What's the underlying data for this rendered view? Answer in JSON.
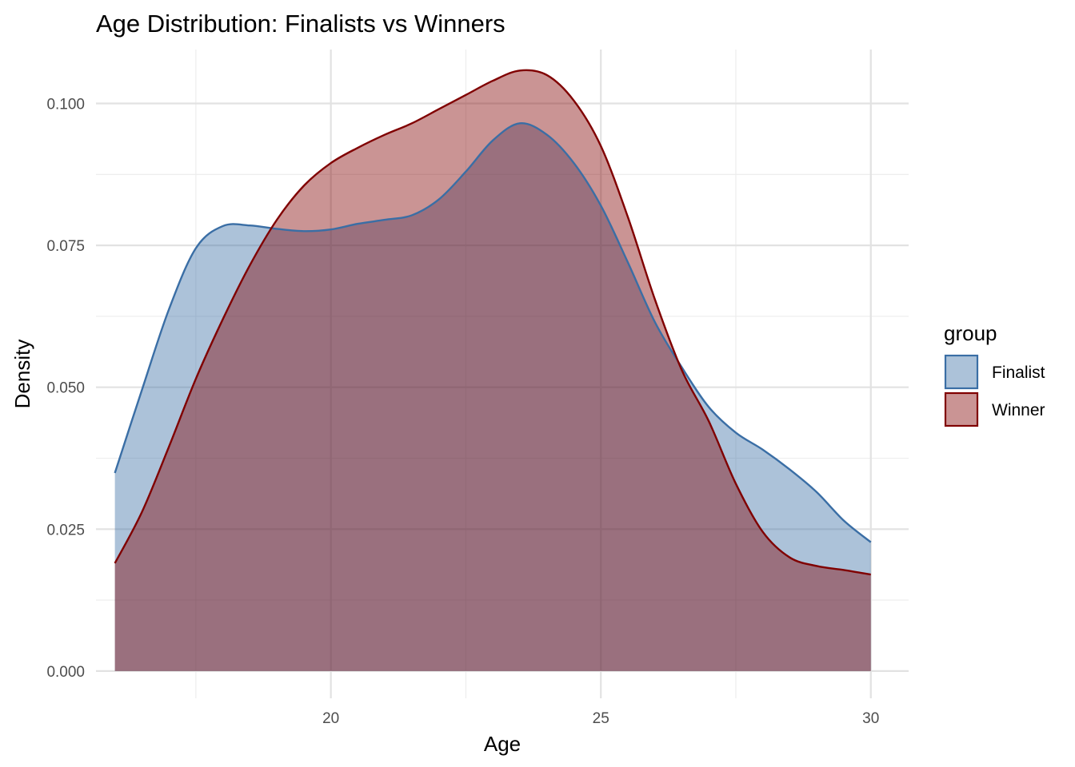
{
  "chart_data": {
    "type": "area",
    "title": "Age Distribution: Finalists vs Winners",
    "xlabel": "Age",
    "ylabel": "Density",
    "xlim": [
      15.65,
      30.7
    ],
    "ylim": [
      -0.0048,
      0.1095
    ],
    "x_ticks": [
      20,
      25,
      30
    ],
    "x_tick_labels": [
      "20",
      "25",
      "30"
    ],
    "x_minor_ticks": [
      17.5,
      22.5,
      27.5
    ],
    "y_ticks": [
      0,
      0.025,
      0.05,
      0.075,
      0.1
    ],
    "y_tick_labels": [
      "0.000",
      "0.025",
      "0.050",
      "0.075",
      "0.100"
    ],
    "y_minor_ticks": [
      0.0125,
      0.0375,
      0.0625,
      0.0875
    ],
    "grid": true,
    "legend": {
      "title": "group",
      "position": "right"
    },
    "series": [
      {
        "name": "Finalist",
        "color": "#3A6EA5",
        "fill": "#A9C1DB",
        "x": [
          16.0,
          16.5,
          17.0,
          17.5,
          18.0,
          18.5,
          19.0,
          19.5,
          20.0,
          20.5,
          21.0,
          21.5,
          22.0,
          22.5,
          23.0,
          23.5,
          24.0,
          24.5,
          25.0,
          25.5,
          26.0,
          26.5,
          27.0,
          27.5,
          28.0,
          28.5,
          29.0,
          29.5,
          30.0
        ],
        "y": [
          0.0349,
          0.0495,
          0.0637,
          0.0745,
          0.0784,
          0.0785,
          0.0779,
          0.0775,
          0.0778,
          0.0788,
          0.0795,
          0.0803,
          0.0831,
          0.088,
          0.0935,
          0.0965,
          0.0945,
          0.0895,
          0.082,
          0.072,
          0.0615,
          0.0535,
          0.0465,
          0.042,
          0.039,
          0.0355,
          0.0315,
          0.0265,
          0.0227
        ]
      },
      {
        "name": "Winner",
        "color": "#800000",
        "fill": "#C49294",
        "x": [
          16.0,
          16.5,
          17.0,
          17.5,
          18.0,
          18.5,
          19.0,
          19.5,
          20.0,
          20.5,
          21.0,
          21.5,
          22.0,
          22.5,
          23.0,
          23.5,
          24.0,
          24.5,
          25.0,
          25.5,
          26.0,
          26.5,
          27.0,
          27.5,
          28.0,
          28.5,
          29.0,
          29.5,
          30.0
        ],
        "y": [
          0.019,
          0.028,
          0.0395,
          0.0515,
          0.062,
          0.0715,
          0.0795,
          0.0855,
          0.0895,
          0.0922,
          0.0945,
          0.0965,
          0.099,
          0.1015,
          0.104,
          0.1058,
          0.105,
          0.1005,
          0.0925,
          0.08,
          0.0655,
          0.053,
          0.044,
          0.033,
          0.0245,
          0.02,
          0.0185,
          0.0178,
          0.017
        ]
      }
    ]
  }
}
